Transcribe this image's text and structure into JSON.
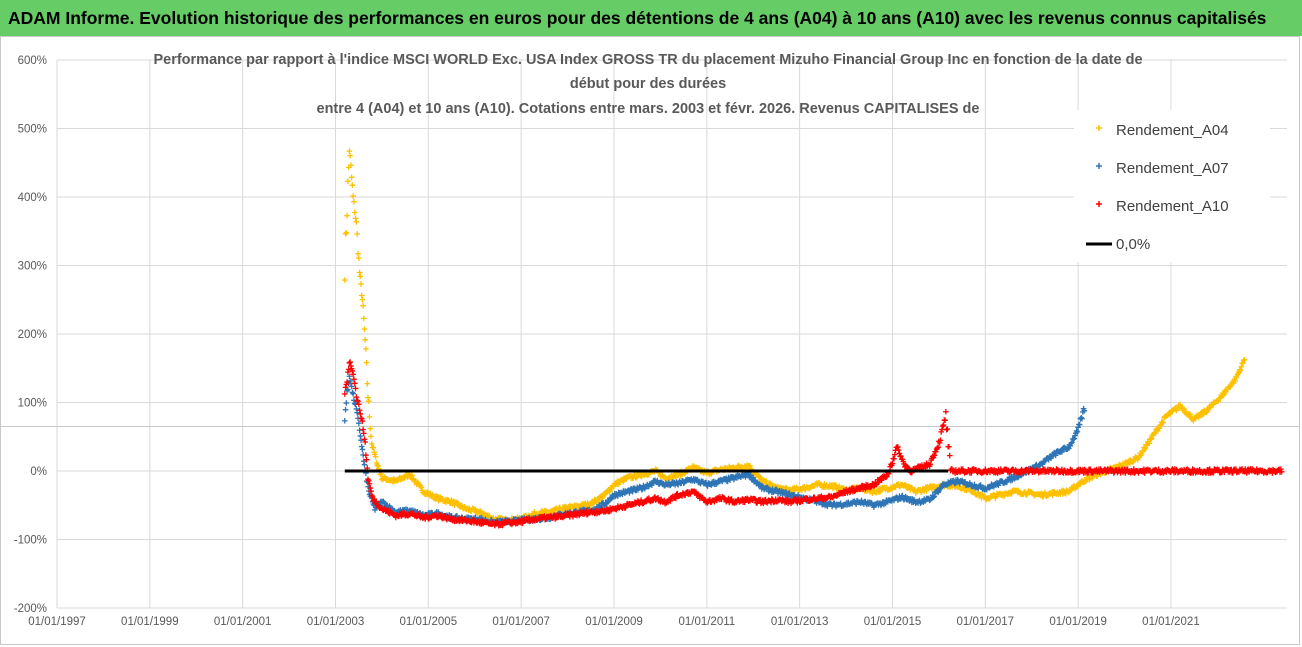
{
  "header": {
    "title": "ADAM Informe. Evolution historique des performances en euros pour des détentions de 4 ans (A04) à 10 ans (A10) avec les revenus connus capitalisés"
  },
  "chart_data": {
    "type": "scatter",
    "title_lines": [
      "Performance par rapport à l'indice MSCI WORLD Exc. USA Index GROSS TR  du placement Mizuho Financial Group Inc en fonction de la date de",
      "début pour des durées",
      "entre 4 (A04) et 10 ans (A10). Cotations entre mars. 2003 et févr. 2026. Revenus CAPITALISES de"
    ],
    "xlabel": "",
    "ylabel": "",
    "xlim": [
      1997.0,
      2023.5
    ],
    "ylim": [
      -200,
      600
    ],
    "x_ticks": [
      "01/01/1997",
      "01/01/1999",
      "01/01/2001",
      "01/01/2003",
      "01/01/2005",
      "01/01/2007",
      "01/01/2009",
      "01/01/2011",
      "01/01/2013",
      "01/01/2015",
      "01/01/2017",
      "01/01/2019",
      "01/01/2021"
    ],
    "y_ticks": [
      "600%",
      "500%",
      "400%",
      "300%",
      "200%",
      "100%",
      "0%",
      "-100%",
      "-200%"
    ],
    "grid": true,
    "legend_position": "top-right",
    "series": [
      {
        "name": "Rendement_A04",
        "color": "#ffc000",
        "marker": "+",
        "points": [
          [
            2003.2,
            300
          ],
          [
            2003.3,
            470
          ],
          [
            2003.38,
            400
          ],
          [
            2003.45,
            360
          ],
          [
            2003.52,
            290
          ],
          [
            2003.58,
            250
          ],
          [
            2003.64,
            190
          ],
          [
            2003.7,
            110
          ],
          [
            2003.78,
            40
          ],
          [
            2003.9,
            10
          ],
          [
            2004.0,
            -10
          ],
          [
            2004.3,
            -15
          ],
          [
            2004.6,
            -5
          ],
          [
            2004.9,
            -30
          ],
          [
            2005.2,
            -40
          ],
          [
            2005.5,
            -45
          ],
          [
            2005.8,
            -55
          ],
          [
            2006.1,
            -60
          ],
          [
            2006.4,
            -70
          ],
          [
            2006.7,
            -72
          ],
          [
            2007.0,
            -70
          ],
          [
            2007.3,
            -62
          ],
          [
            2007.6,
            -60
          ],
          [
            2007.9,
            -55
          ],
          [
            2008.2,
            -52
          ],
          [
            2008.5,
            -48
          ],
          [
            2008.8,
            -35
          ],
          [
            2009.0,
            -20
          ],
          [
            2009.3,
            -10
          ],
          [
            2009.6,
            -5
          ],
          [
            2009.9,
            0
          ],
          [
            2010.1,
            -10
          ],
          [
            2010.4,
            -5
          ],
          [
            2010.7,
            5
          ],
          [
            2011.0,
            -3
          ],
          [
            2011.3,
            2
          ],
          [
            2011.6,
            5
          ],
          [
            2011.9,
            8
          ],
          [
            2012.2,
            -15
          ],
          [
            2012.5,
            -25
          ],
          [
            2012.8,
            -28
          ],
          [
            2013.1,
            -25
          ],
          [
            2013.4,
            -20
          ],
          [
            2013.7,
            -22
          ],
          [
            2014.0,
            -28
          ],
          [
            2014.3,
            -25
          ],
          [
            2014.6,
            -30
          ],
          [
            2014.9,
            -25
          ],
          [
            2015.2,
            -20
          ],
          [
            2015.5,
            -30
          ],
          [
            2015.8,
            -25
          ],
          [
            2016.1,
            -20
          ],
          [
            2016.4,
            -22
          ],
          [
            2016.7,
            -28
          ],
          [
            2017.0,
            -40
          ],
          [
            2017.3,
            -35
          ],
          [
            2017.6,
            -30
          ],
          [
            2017.9,
            -32
          ],
          [
            2018.2,
            -35
          ],
          [
            2018.5,
            -32
          ],
          [
            2018.8,
            -30
          ],
          [
            2019.1,
            -15
          ],
          [
            2019.4,
            -5
          ],
          [
            2019.7,
            2
          ],
          [
            2020.0,
            10
          ],
          [
            2020.3,
            20
          ],
          [
            2020.6,
            50
          ],
          [
            2020.9,
            80
          ],
          [
            2021.2,
            95
          ],
          [
            2021.5,
            75
          ],
          [
            2021.8,
            90
          ],
          [
            2022.1,
            110
          ],
          [
            2022.4,
            135
          ],
          [
            2022.6,
            165
          ]
        ]
      },
      {
        "name": "Rendement_A07",
        "color": "#2e75b6",
        "marker": "+",
        "points": [
          [
            2003.2,
            80
          ],
          [
            2003.3,
            140
          ],
          [
            2003.38,
            110
          ],
          [
            2003.45,
            90
          ],
          [
            2003.52,
            60
          ],
          [
            2003.58,
            30
          ],
          [
            2003.64,
            0
          ],
          [
            2003.72,
            -30
          ],
          [
            2003.85,
            -55
          ],
          [
            2004.0,
            -45
          ],
          [
            2004.3,
            -60
          ],
          [
            2004.6,
            -58
          ],
          [
            2004.9,
            -65
          ],
          [
            2005.2,
            -62
          ],
          [
            2005.5,
            -68
          ],
          [
            2005.8,
            -70
          ],
          [
            2006.1,
            -70
          ],
          [
            2006.4,
            -75
          ],
          [
            2006.7,
            -74
          ],
          [
            2007.0,
            -72
          ],
          [
            2007.3,
            -70
          ],
          [
            2007.6,
            -68
          ],
          [
            2007.9,
            -63
          ],
          [
            2008.2,
            -60
          ],
          [
            2008.5,
            -58
          ],
          [
            2008.8,
            -48
          ],
          [
            2009.0,
            -35
          ],
          [
            2009.3,
            -30
          ],
          [
            2009.6,
            -25
          ],
          [
            2009.9,
            -15
          ],
          [
            2010.1,
            -20
          ],
          [
            2010.4,
            -18
          ],
          [
            2010.7,
            -12
          ],
          [
            2011.0,
            -20
          ],
          [
            2011.3,
            -15
          ],
          [
            2011.6,
            -10
          ],
          [
            2011.9,
            -5
          ],
          [
            2012.2,
            -25
          ],
          [
            2012.5,
            -30
          ],
          [
            2012.8,
            -35
          ],
          [
            2013.1,
            -40
          ],
          [
            2013.4,
            -45
          ],
          [
            2013.7,
            -50
          ],
          [
            2014.0,
            -48
          ],
          [
            2014.3,
            -45
          ],
          [
            2014.6,
            -50
          ],
          [
            2014.9,
            -45
          ],
          [
            2015.2,
            -38
          ],
          [
            2015.5,
            -45
          ],
          [
            2015.8,
            -42
          ],
          [
            2016.1,
            -20
          ],
          [
            2016.4,
            -15
          ],
          [
            2016.7,
            -20
          ],
          [
            2017.0,
            -25
          ],
          [
            2017.3,
            -18
          ],
          [
            2017.6,
            -10
          ],
          [
            2017.9,
            0
          ],
          [
            2018.2,
            10
          ],
          [
            2018.5,
            25
          ],
          [
            2018.8,
            35
          ],
          [
            2019.0,
            60
          ],
          [
            2019.15,
            95
          ]
        ]
      },
      {
        "name": "Rendement_A10",
        "color": "#ff0000",
        "marker": "+",
        "points": [
          [
            2003.2,
            110
          ],
          [
            2003.3,
            160
          ],
          [
            2003.38,
            145
          ],
          [
            2003.45,
            110
          ],
          [
            2003.52,
            90
          ],
          [
            2003.58,
            70
          ],
          [
            2003.64,
            40
          ],
          [
            2003.7,
            -10
          ],
          [
            2003.8,
            -40
          ],
          [
            2004.0,
            -55
          ],
          [
            2004.3,
            -65
          ],
          [
            2004.6,
            -62
          ],
          [
            2004.9,
            -68
          ],
          [
            2005.2,
            -65
          ],
          [
            2005.5,
            -70
          ],
          [
            2005.8,
            -72
          ],
          [
            2006.1,
            -75
          ],
          [
            2006.4,
            -78
          ],
          [
            2006.7,
            -76
          ],
          [
            2007.0,
            -74
          ],
          [
            2007.3,
            -70
          ],
          [
            2007.6,
            -68
          ],
          [
            2007.9,
            -66
          ],
          [
            2008.2,
            -63
          ],
          [
            2008.5,
            -60
          ],
          [
            2008.8,
            -58
          ],
          [
            2009.0,
            -55
          ],
          [
            2009.3,
            -50
          ],
          [
            2009.6,
            -45
          ],
          [
            2009.9,
            -40
          ],
          [
            2010.1,
            -45
          ],
          [
            2010.4,
            -35
          ],
          [
            2010.7,
            -30
          ],
          [
            2011.0,
            -45
          ],
          [
            2011.3,
            -40
          ],
          [
            2011.6,
            -45
          ],
          [
            2011.9,
            -42
          ],
          [
            2012.2,
            -45
          ],
          [
            2012.5,
            -42
          ],
          [
            2012.8,
            -45
          ],
          [
            2013.1,
            -42
          ],
          [
            2013.4,
            -40
          ],
          [
            2013.7,
            -38
          ],
          [
            2014.0,
            -30
          ],
          [
            2014.3,
            -25
          ],
          [
            2014.6,
            -20
          ],
          [
            2014.9,
            -5
          ],
          [
            2015.1,
            35
          ],
          [
            2015.25,
            10
          ],
          [
            2015.4,
            0
          ],
          [
            2015.6,
            5
          ],
          [
            2015.8,
            10
          ],
          [
            2016.0,
            40
          ],
          [
            2016.15,
            80
          ],
          [
            2016.25,
            0
          ],
          [
            2017.0,
            0
          ],
          [
            2018.0,
            0
          ],
          [
            2019.0,
            0
          ],
          [
            2020.0,
            0
          ],
          [
            2021.0,
            0
          ],
          [
            2022.0,
            0
          ],
          [
            2023.0,
            0
          ],
          [
            2023.4,
            0
          ]
        ]
      },
      {
        "name": "0,0%",
        "color": "#000000",
        "type": "line",
        "points": [
          [
            2003.2,
            0
          ],
          [
            2016.2,
            0
          ]
        ]
      }
    ]
  }
}
